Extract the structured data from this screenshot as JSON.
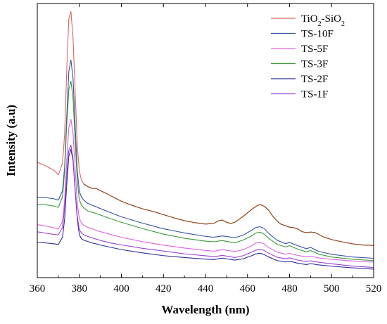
{
  "chart_data": {
    "type": "line",
    "xlabel": "Wavelength (nm)",
    "ylabel": "Intensity (a.u)",
    "xlim": [
      360,
      520
    ],
    "ylim": [
      0,
      100
    ],
    "xticks": [
      360,
      380,
      400,
      420,
      440,
      460,
      480,
      500,
      520
    ],
    "yticks": [],
    "grid": false,
    "legend_position": "top-right",
    "series": [
      {
        "name": "TiO2-SiO2",
        "legend_main": "TiO",
        "legend_sub1": "2",
        "legend_mid": "-SiO",
        "legend_sub2": "2",
        "color": "#e06666",
        "tail_color": "#8b4513",
        "x": [
          360,
          364,
          368,
          370,
          372,
          373,
          374,
          375,
          376,
          377,
          378,
          379,
          380,
          381,
          382,
          384,
          386,
          388,
          390,
          392,
          395,
          400,
          405,
          410,
          415,
          420,
          425,
          430,
          435,
          440,
          444,
          446,
          448,
          450,
          452,
          454,
          456,
          458,
          460,
          462,
          464,
          466,
          468,
          470,
          472,
          474,
          476,
          478,
          480,
          482,
          484,
          486,
          488,
          490,
          492,
          494,
          496,
          500,
          505,
          510,
          515,
          520
        ],
        "y": [
          42.1,
          40.8,
          39.2,
          37.6,
          41.8,
          52.4,
          75.7,
          94.5,
          97.1,
          87.4,
          68.3,
          48.5,
          38.9,
          35.4,
          34.2,
          33.2,
          32.6,
          32.6,
          31.8,
          31.1,
          29.9,
          27.9,
          26.4,
          25.1,
          24.1,
          22.9,
          21.7,
          20.7,
          20.0,
          19.5,
          19.8,
          20.7,
          21.1,
          20.3,
          19.8,
          20.3,
          21.3,
          22.4,
          23.6,
          24.8,
          25.9,
          26.6,
          25.9,
          24.6,
          22.4,
          20.7,
          19.5,
          19.0,
          18.5,
          18.3,
          17.8,
          16.8,
          16.4,
          16.6,
          16.4,
          15.6,
          14.8,
          13.8,
          13.0,
          12.3,
          11.9,
          11.8
        ]
      },
      {
        "name": "TS-10F",
        "color": "#3352a8",
        "x": [
          360,
          364,
          368,
          370,
          372,
          373,
          374,
          375,
          376,
          377,
          378,
          379,
          380,
          381,
          382,
          384,
          386,
          388,
          390,
          395,
          400,
          410,
          420,
          430,
          440,
          444,
          448,
          450,
          454,
          458,
          462,
          464,
          466,
          468,
          470,
          474,
          478,
          480,
          484,
          488,
          490,
          494,
          500,
          510,
          520
        ],
        "y": [
          29.4,
          29.2,
          28.7,
          28.2,
          31.6,
          40.3,
          58.5,
          75.2,
          79.4,
          72.8,
          55.8,
          39.3,
          31.6,
          29.4,
          28.4,
          27.1,
          26.4,
          25.8,
          25.1,
          23.6,
          22.1,
          19.8,
          17.8,
          16.3,
          15.1,
          14.8,
          15.3,
          15.1,
          14.6,
          15.6,
          17.3,
          18.3,
          18.5,
          17.8,
          16.1,
          13.6,
          12.3,
          12.8,
          11.6,
          10.6,
          11.1,
          9.6,
          8.6,
          7.6,
          7.1
        ]
      },
      {
        "name": "TS-5F",
        "color": "#e060e0",
        "x": [
          360,
          364,
          368,
          370,
          372,
          373,
          374,
          375,
          376,
          377,
          378,
          379,
          380,
          381,
          382,
          384,
          386,
          388,
          390,
          395,
          400,
          410,
          420,
          430,
          440,
          444,
          448,
          450,
          454,
          458,
          462,
          464,
          466,
          468,
          470,
          474,
          478,
          480,
          484,
          488,
          490,
          494,
          500,
          510,
          520
        ],
        "y": [
          19.3,
          18.8,
          18.2,
          17.8,
          20.6,
          28.2,
          42.6,
          54.8,
          57.8,
          52.6,
          39.8,
          27.2,
          21.4,
          19.9,
          19.1,
          18.3,
          17.8,
          17.3,
          16.8,
          15.8,
          14.8,
          13.2,
          11.9,
          10.8,
          9.9,
          9.6,
          10.1,
          9.9,
          9.4,
          10.1,
          11.6,
          12.6,
          12.9,
          12.3,
          11.1,
          9.4,
          8.6,
          8.9,
          8.1,
          7.6,
          7.8,
          7.1,
          6.6,
          6.0,
          5.6
        ]
      },
      {
        "name": "TS-3F",
        "color": "#3a9a3a",
        "x": [
          360,
          364,
          368,
          370,
          372,
          373,
          374,
          375,
          376,
          377,
          378,
          379,
          380,
          381,
          382,
          384,
          386,
          388,
          390,
          395,
          400,
          410,
          420,
          430,
          440,
          444,
          448,
          450,
          454,
          458,
          462,
          464,
          466,
          468,
          470,
          474,
          478,
          480,
          484,
          488,
          490,
          494,
          500,
          510,
          520
        ],
        "y": [
          26.9,
          26.6,
          26.1,
          25.6,
          29.4,
          38.5,
          55.5,
          68.5,
          71.6,
          65.5,
          50.2,
          35.6,
          28.4,
          26.6,
          25.6,
          24.4,
          23.9,
          23.4,
          22.8,
          21.4,
          20.1,
          17.8,
          15.8,
          14.3,
          13.3,
          13.1,
          13.6,
          13.3,
          12.8,
          13.8,
          15.3,
          16.3,
          16.6,
          15.8,
          14.3,
          12.1,
          11.1,
          11.6,
          10.3,
          9.4,
          9.9,
          8.6,
          7.6,
          6.8,
          6.3
        ]
      },
      {
        "name": "TS-2F",
        "color": "#2a2a9a",
        "x": [
          360,
          364,
          368,
          370,
          372,
          373,
          374,
          375,
          376,
          377,
          378,
          379,
          380,
          381,
          382,
          384,
          386,
          388,
          390,
          395,
          400,
          410,
          420,
          430,
          440,
          444,
          448,
          450,
          454,
          458,
          462,
          464,
          466,
          468,
          470,
          474,
          478,
          480,
          484,
          488,
          490,
          494,
          500,
          510,
          520
        ],
        "y": [
          12.8,
          12.6,
          12.3,
          12.1,
          14.8,
          21.4,
          33.8,
          44.4,
          46.9,
          42.6,
          31.9,
          21.4,
          15.6,
          14.1,
          13.6,
          13.1,
          12.6,
          12.3,
          11.9,
          11.1,
          10.3,
          9.1,
          8.1,
          7.4,
          6.8,
          6.6,
          7.1,
          6.8,
          6.3,
          6.8,
          7.9,
          8.6,
          8.9,
          8.4,
          7.6,
          6.3,
          5.8,
          6.1,
          5.3,
          4.8,
          5.1,
          4.6,
          4.1,
          3.5,
          3.0
        ]
      },
      {
        "name": "TS-1F",
        "color": "#9a40d0",
        "x": [
          360,
          364,
          368,
          370,
          372,
          373,
          374,
          375,
          376,
          377,
          378,
          379,
          380,
          381,
          382,
          384,
          386,
          388,
          390,
          395,
          400,
          410,
          420,
          430,
          440,
          444,
          448,
          450,
          454,
          458,
          462,
          464,
          466,
          468,
          470,
          474,
          478,
          480,
          484,
          488,
          490,
          494,
          500,
          510,
          520
        ],
        "y": [
          16.8,
          16.3,
          15.8,
          15.6,
          18.3,
          25.4,
          37.5,
          46.4,
          48.2,
          43.4,
          32.4,
          22.4,
          17.6,
          16.3,
          15.8,
          15.1,
          14.6,
          14.1,
          13.6,
          12.6,
          11.9,
          10.6,
          9.6,
          8.6,
          7.9,
          7.6,
          8.1,
          7.9,
          7.4,
          8.1,
          9.4,
          10.1,
          10.4,
          9.9,
          8.9,
          7.4,
          6.8,
          7.1,
          6.3,
          5.8,
          6.1,
          5.6,
          5.1,
          4.3,
          3.8
        ]
      }
    ]
  }
}
